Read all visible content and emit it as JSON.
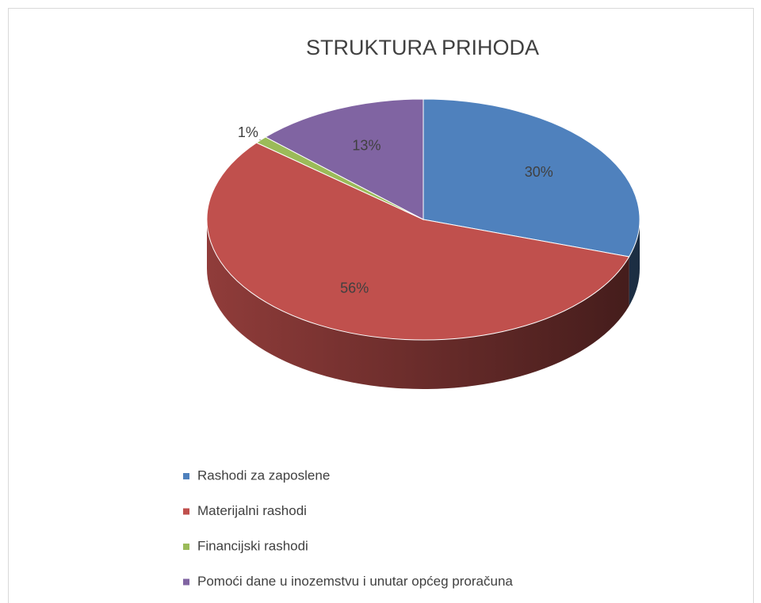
{
  "chart_data": {
    "type": "pie",
    "title": "STRUKTURA PRIHODA",
    "categories": [
      "Rashodi za zaposlene",
      "Materijalni rashodi",
      "Financijski rashodi",
      "Pomoći dane u inozemstvu i unutar općeg proračuna"
    ],
    "values": [
      30,
      56,
      1,
      13
    ],
    "value_labels": [
      "30%",
      "56%",
      "1%",
      "13%"
    ],
    "colors": [
      "#4f81bd",
      "#c0504d",
      "#9bbb59",
      "#8064a2"
    ],
    "legend": "bottom"
  }
}
